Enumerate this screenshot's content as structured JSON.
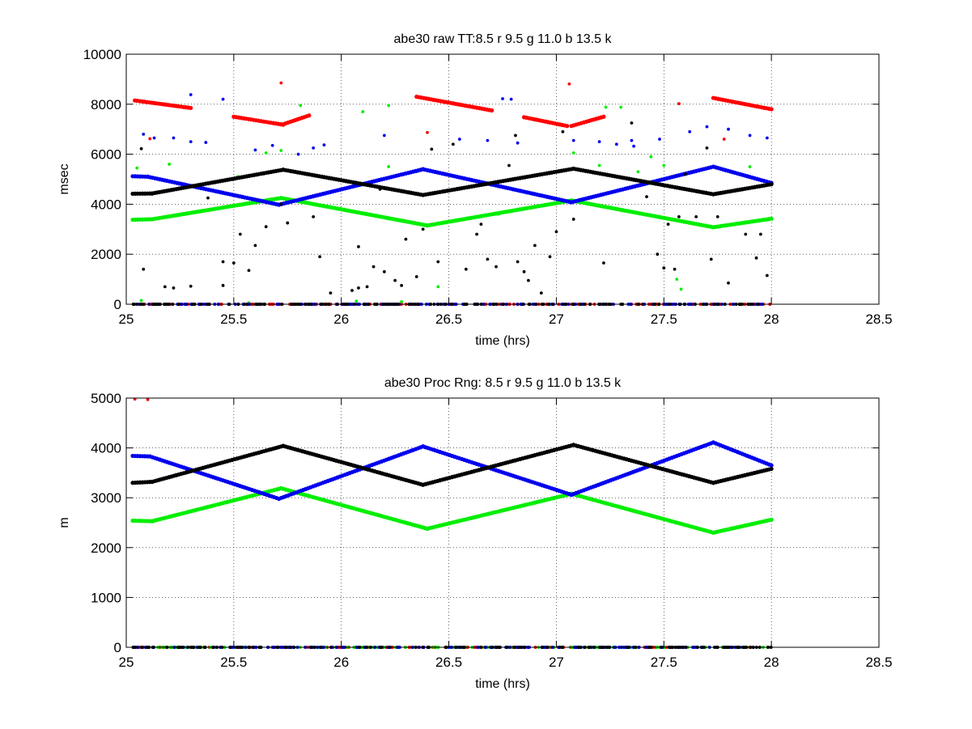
{
  "chart_data": [
    {
      "type": "scatter",
      "title": "abe30 raw TT:8.5 r  9.5 g  11.0 b  13.5  k",
      "xlabel": "time (hrs)",
      "ylabel": "msec",
      "xlim": [
        25,
        28.5
      ],
      "ylim": [
        0,
        10000
      ],
      "xticks": [
        "25",
        "25.5",
        "26",
        "26.5",
        "27",
        "27.5",
        "28",
        "28.5"
      ],
      "yticks": [
        "0",
        "2000",
        "4000",
        "6000",
        "8000",
        "10000"
      ],
      "grid": true,
      "series": [
        {
          "color": "#ff0000",
          "segments": [
            [
              [
                25.04,
                8150
              ],
              [
                25.3,
                7850
              ]
            ],
            [
              [
                25.5,
                7500
              ],
              [
                25.73,
                7180
              ]
            ],
            [
              [
                25.73,
                7200
              ],
              [
                25.85,
                7550
              ]
            ],
            [
              [
                26.35,
                8300
              ],
              [
                26.7,
                7750
              ]
            ],
            [
              [
                26.85,
                7480
              ],
              [
                27.05,
                7130
              ]
            ],
            [
              [
                27.07,
                7130
              ],
              [
                27.22,
                7500
              ]
            ],
            [
              [
                27.73,
                8250
              ],
              [
                28.0,
                7800
              ]
            ]
          ],
          "points": [
            [
              25.05,
              8150
            ],
            [
              25.11,
              6620
            ],
            [
              25.72,
              8850
            ],
            [
              26.4,
              6870
            ],
            [
              27.06,
              8810
            ],
            [
              27.57,
              8020
            ],
            [
              27.78,
              6600
            ]
          ],
          "baseline": true
        },
        {
          "color": "#00ee00",
          "segments": [
            [
              [
                25.03,
                3380
              ],
              [
                25.12,
                3400
              ]
            ],
            [
              [
                25.12,
                3400
              ],
              [
                25.72,
                4250
              ]
            ],
            [
              [
                25.72,
                4250
              ],
              [
                26.4,
                3150
              ]
            ],
            [
              [
                26.4,
                3150
              ],
              [
                27.07,
                4150
              ]
            ],
            [
              [
                27.07,
                4150
              ],
              [
                27.73,
                3080
              ]
            ],
            [
              [
                27.73,
                3080
              ],
              [
                28.0,
                3420
              ]
            ]
          ],
          "points": [
            [
              25.05,
              5450
            ],
            [
              25.2,
              5600
            ],
            [
              25.52,
              5100
            ],
            [
              25.65,
              6050
            ],
            [
              25.72,
              6150
            ],
            [
              25.81,
              7950
            ],
            [
              26.1,
              7700
            ],
            [
              26.22,
              7950
            ],
            [
              26.22,
              5500
            ],
            [
              26.35,
              5300
            ],
            [
              26.45,
              700
            ],
            [
              26.73,
              3600
            ],
            [
              27.08,
              6050
            ],
            [
              27.2,
              5550
            ],
            [
              27.23,
              7880
            ],
            [
              27.3,
              7880
            ],
            [
              27.38,
              5300
            ],
            [
              27.44,
              5900
            ],
            [
              27.5,
              5550
            ],
            [
              27.56,
              1000
            ],
            [
              27.58,
              600
            ],
            [
              27.9,
              5500
            ],
            [
              25.07,
              150
            ],
            [
              25.57,
              50
            ],
            [
              26.28,
              100
            ],
            [
              26.07,
              120
            ]
          ],
          "baseline": false
        },
        {
          "color": "#0000ee",
          "segments": [
            [
              [
                25.03,
                5120
              ],
              [
                25.1,
                5100
              ]
            ],
            [
              [
                25.1,
                5100
              ],
              [
                25.71,
                3980
              ]
            ],
            [
              [
                25.71,
                3980
              ],
              [
                26.38,
                5400
              ]
            ],
            [
              [
                26.38,
                5400
              ],
              [
                27.07,
                4080
              ]
            ],
            [
              [
                27.07,
                4080
              ],
              [
                27.73,
                5500
              ]
            ],
            [
              [
                27.73,
                5500
              ],
              [
                28.0,
                4850
              ]
            ]
          ],
          "points": [
            [
              25.08,
              6800
            ],
            [
              25.13,
              6650
            ],
            [
              25.22,
              6650
            ],
            [
              25.3,
              6500
            ],
            [
              25.37,
              6470
            ],
            [
              25.45,
              8200
            ],
            [
              25.6,
              6170
            ],
            [
              25.68,
              6350
            ],
            [
              25.8,
              6000
            ],
            [
              25.87,
              6250
            ],
            [
              25.92,
              6370
            ],
            [
              26.2,
              6750
            ],
            [
              26.55,
              6600
            ],
            [
              26.68,
              6550
            ],
            [
              26.75,
              8220
            ],
            [
              26.79,
              8200
            ],
            [
              26.82,
              6450
            ],
            [
              27.08,
              6550
            ],
            [
              27.2,
              6500
            ],
            [
              27.28,
              6400
            ],
            [
              27.35,
              6550
            ],
            [
              27.48,
              6600
            ],
            [
              27.62,
              6900
            ],
            [
              27.7,
              7100
            ],
            [
              27.8,
              7000
            ],
            [
              27.9,
              6750
            ],
            [
              27.98,
              6650
            ],
            [
              25.3,
              8380
            ],
            [
              27.36,
              6320
            ]
          ],
          "baseline": true
        },
        {
          "color": "#000000",
          "segments": [
            [
              [
                25.03,
                4420
              ],
              [
                25.12,
                4430
              ]
            ],
            [
              [
                25.12,
                4430
              ],
              [
                25.73,
                5380
              ]
            ],
            [
              [
                25.73,
                5380
              ],
              [
                26.38,
                4370
              ]
            ],
            [
              [
                26.38,
                4370
              ],
              [
                27.08,
                5420
              ]
            ],
            [
              [
                27.08,
                5420
              ],
              [
                27.73,
                4400
              ]
            ],
            [
              [
                27.73,
                4400
              ],
              [
                28.0,
                4800
              ]
            ]
          ],
          "points": [
            [
              25.07,
              6220
            ],
            [
              25.08,
              1400
            ],
            [
              25.18,
              700
            ],
            [
              25.22,
              650
            ],
            [
              25.3,
              720
            ],
            [
              25.38,
              4250
            ],
            [
              25.45,
              1700
            ],
            [
              25.45,
              750
            ],
            [
              25.5,
              1650
            ],
            [
              25.53,
              2800
            ],
            [
              25.57,
              1350
            ],
            [
              25.6,
              2350
            ],
            [
              25.65,
              3100
            ],
            [
              25.72,
              4000
            ],
            [
              25.75,
              3250
            ],
            [
              25.87,
              3500
            ],
            [
              25.9,
              1900
            ],
            [
              25.95,
              450
            ],
            [
              26.05,
              550
            ],
            [
              26.08,
              650
            ],
            [
              26.08,
              2300
            ],
            [
              26.12,
              700
            ],
            [
              26.15,
              1500
            ],
            [
              26.18,
              4600
            ],
            [
              26.2,
              1300
            ],
            [
              26.25,
              950
            ],
            [
              26.28,
              750
            ],
            [
              26.3,
              2600
            ],
            [
              26.35,
              1100
            ],
            [
              26.38,
              3000
            ],
            [
              26.42,
              6200
            ],
            [
              26.45,
              1700
            ],
            [
              26.52,
              6400
            ],
            [
              26.58,
              1400
            ],
            [
              26.63,
              2800
            ],
            [
              26.65,
              3200
            ],
            [
              26.68,
              1800
            ],
            [
              26.72,
              1500
            ],
            [
              26.78,
              5550
            ],
            [
              26.81,
              6750
            ],
            [
              26.82,
              1700
            ],
            [
              26.85,
              1300
            ],
            [
              26.87,
              950
            ],
            [
              26.9,
              2350
            ],
            [
              26.93,
              450
            ],
            [
              26.97,
              1900
            ],
            [
              27.0,
              2900
            ],
            [
              27.03,
              6900
            ],
            [
              27.08,
              3400
            ],
            [
              27.22,
              1650
            ],
            [
              27.35,
              7250
            ],
            [
              27.42,
              4300
            ],
            [
              27.47,
              2000
            ],
            [
              27.5,
              1450
            ],
            [
              27.52,
              3200
            ],
            [
              27.55,
              1400
            ],
            [
              27.57,
              3500
            ],
            [
              27.6,
              5200
            ],
            [
              27.65,
              3500
            ],
            [
              27.7,
              6250
            ],
            [
              27.72,
              1800
            ],
            [
              27.75,
              3500
            ],
            [
              27.8,
              850
            ],
            [
              27.88,
              2800
            ],
            [
              27.93,
              1850
            ],
            [
              27.98,
              1150
            ],
            [
              27.95,
              2800
            ]
          ],
          "baseline": true
        }
      ],
      "baseline_range": [
        25.03,
        28.0
      ]
    },
    {
      "type": "scatter",
      "title": "abe30 Proc Rng: 8.5 r  9.5 g  11.0 b  13.5  k",
      "xlabel": "time (hrs)",
      "ylabel": "m",
      "xlim": [
        25,
        28.5
      ],
      "ylim": [
        0,
        5000
      ],
      "xticks": [
        "25",
        "25.5",
        "26",
        "26.5",
        "27",
        "27.5",
        "28",
        "28.5"
      ],
      "yticks": [
        "0",
        "1000",
        "2000",
        "3000",
        "4000",
        "5000"
      ],
      "grid": true,
      "series": [
        {
          "color": "#ff0000",
          "segments": [],
          "points": [
            [
              25.04,
              4980
            ],
            [
              25.1,
              4970
            ]
          ],
          "baseline": true
        },
        {
          "color": "#00ee00",
          "segments": [
            [
              [
                25.03,
                2540
              ],
              [
                25.12,
                2530
              ]
            ],
            [
              [
                25.12,
                2530
              ],
              [
                25.72,
                3190
              ]
            ],
            [
              [
                25.72,
                3190
              ],
              [
                26.4,
                2380
              ]
            ],
            [
              [
                26.4,
                2380
              ],
              [
                27.07,
                3080
              ]
            ],
            [
              [
                27.07,
                3080
              ],
              [
                27.73,
                2300
              ]
            ],
            [
              [
                27.73,
                2300
              ],
              [
                28.0,
                2560
              ]
            ]
          ],
          "points": [],
          "baseline": true
        },
        {
          "color": "#0000ee",
          "segments": [
            [
              [
                25.03,
                3840
              ],
              [
                25.11,
                3830
              ]
            ],
            [
              [
                25.11,
                3830
              ],
              [
                25.71,
                2980
              ]
            ],
            [
              [
                25.71,
                2980
              ],
              [
                26.38,
                4030
              ]
            ],
            [
              [
                26.38,
                4030
              ],
              [
                27.07,
                3060
              ]
            ],
            [
              [
                27.07,
                3060
              ],
              [
                27.73,
                4110
              ]
            ],
            [
              [
                27.73,
                4110
              ],
              [
                28.0,
                3650
              ]
            ]
          ],
          "points": [],
          "baseline": true
        },
        {
          "color": "#000000",
          "segments": [
            [
              [
                25.03,
                3300
              ],
              [
                25.12,
                3320
              ]
            ],
            [
              [
                25.12,
                3320
              ],
              [
                25.73,
                4040
              ]
            ],
            [
              [
                25.73,
                4040
              ],
              [
                26.38,
                3260
              ]
            ],
            [
              [
                26.38,
                3260
              ],
              [
                27.08,
                4060
              ]
            ],
            [
              [
                27.08,
                4060
              ],
              [
                27.73,
                3300
              ]
            ],
            [
              [
                27.73,
                3300
              ],
              [
                28.0,
                3580
              ]
            ]
          ],
          "points": [],
          "baseline": true
        }
      ],
      "baseline_range": [
        25.03,
        28.0
      ]
    }
  ]
}
